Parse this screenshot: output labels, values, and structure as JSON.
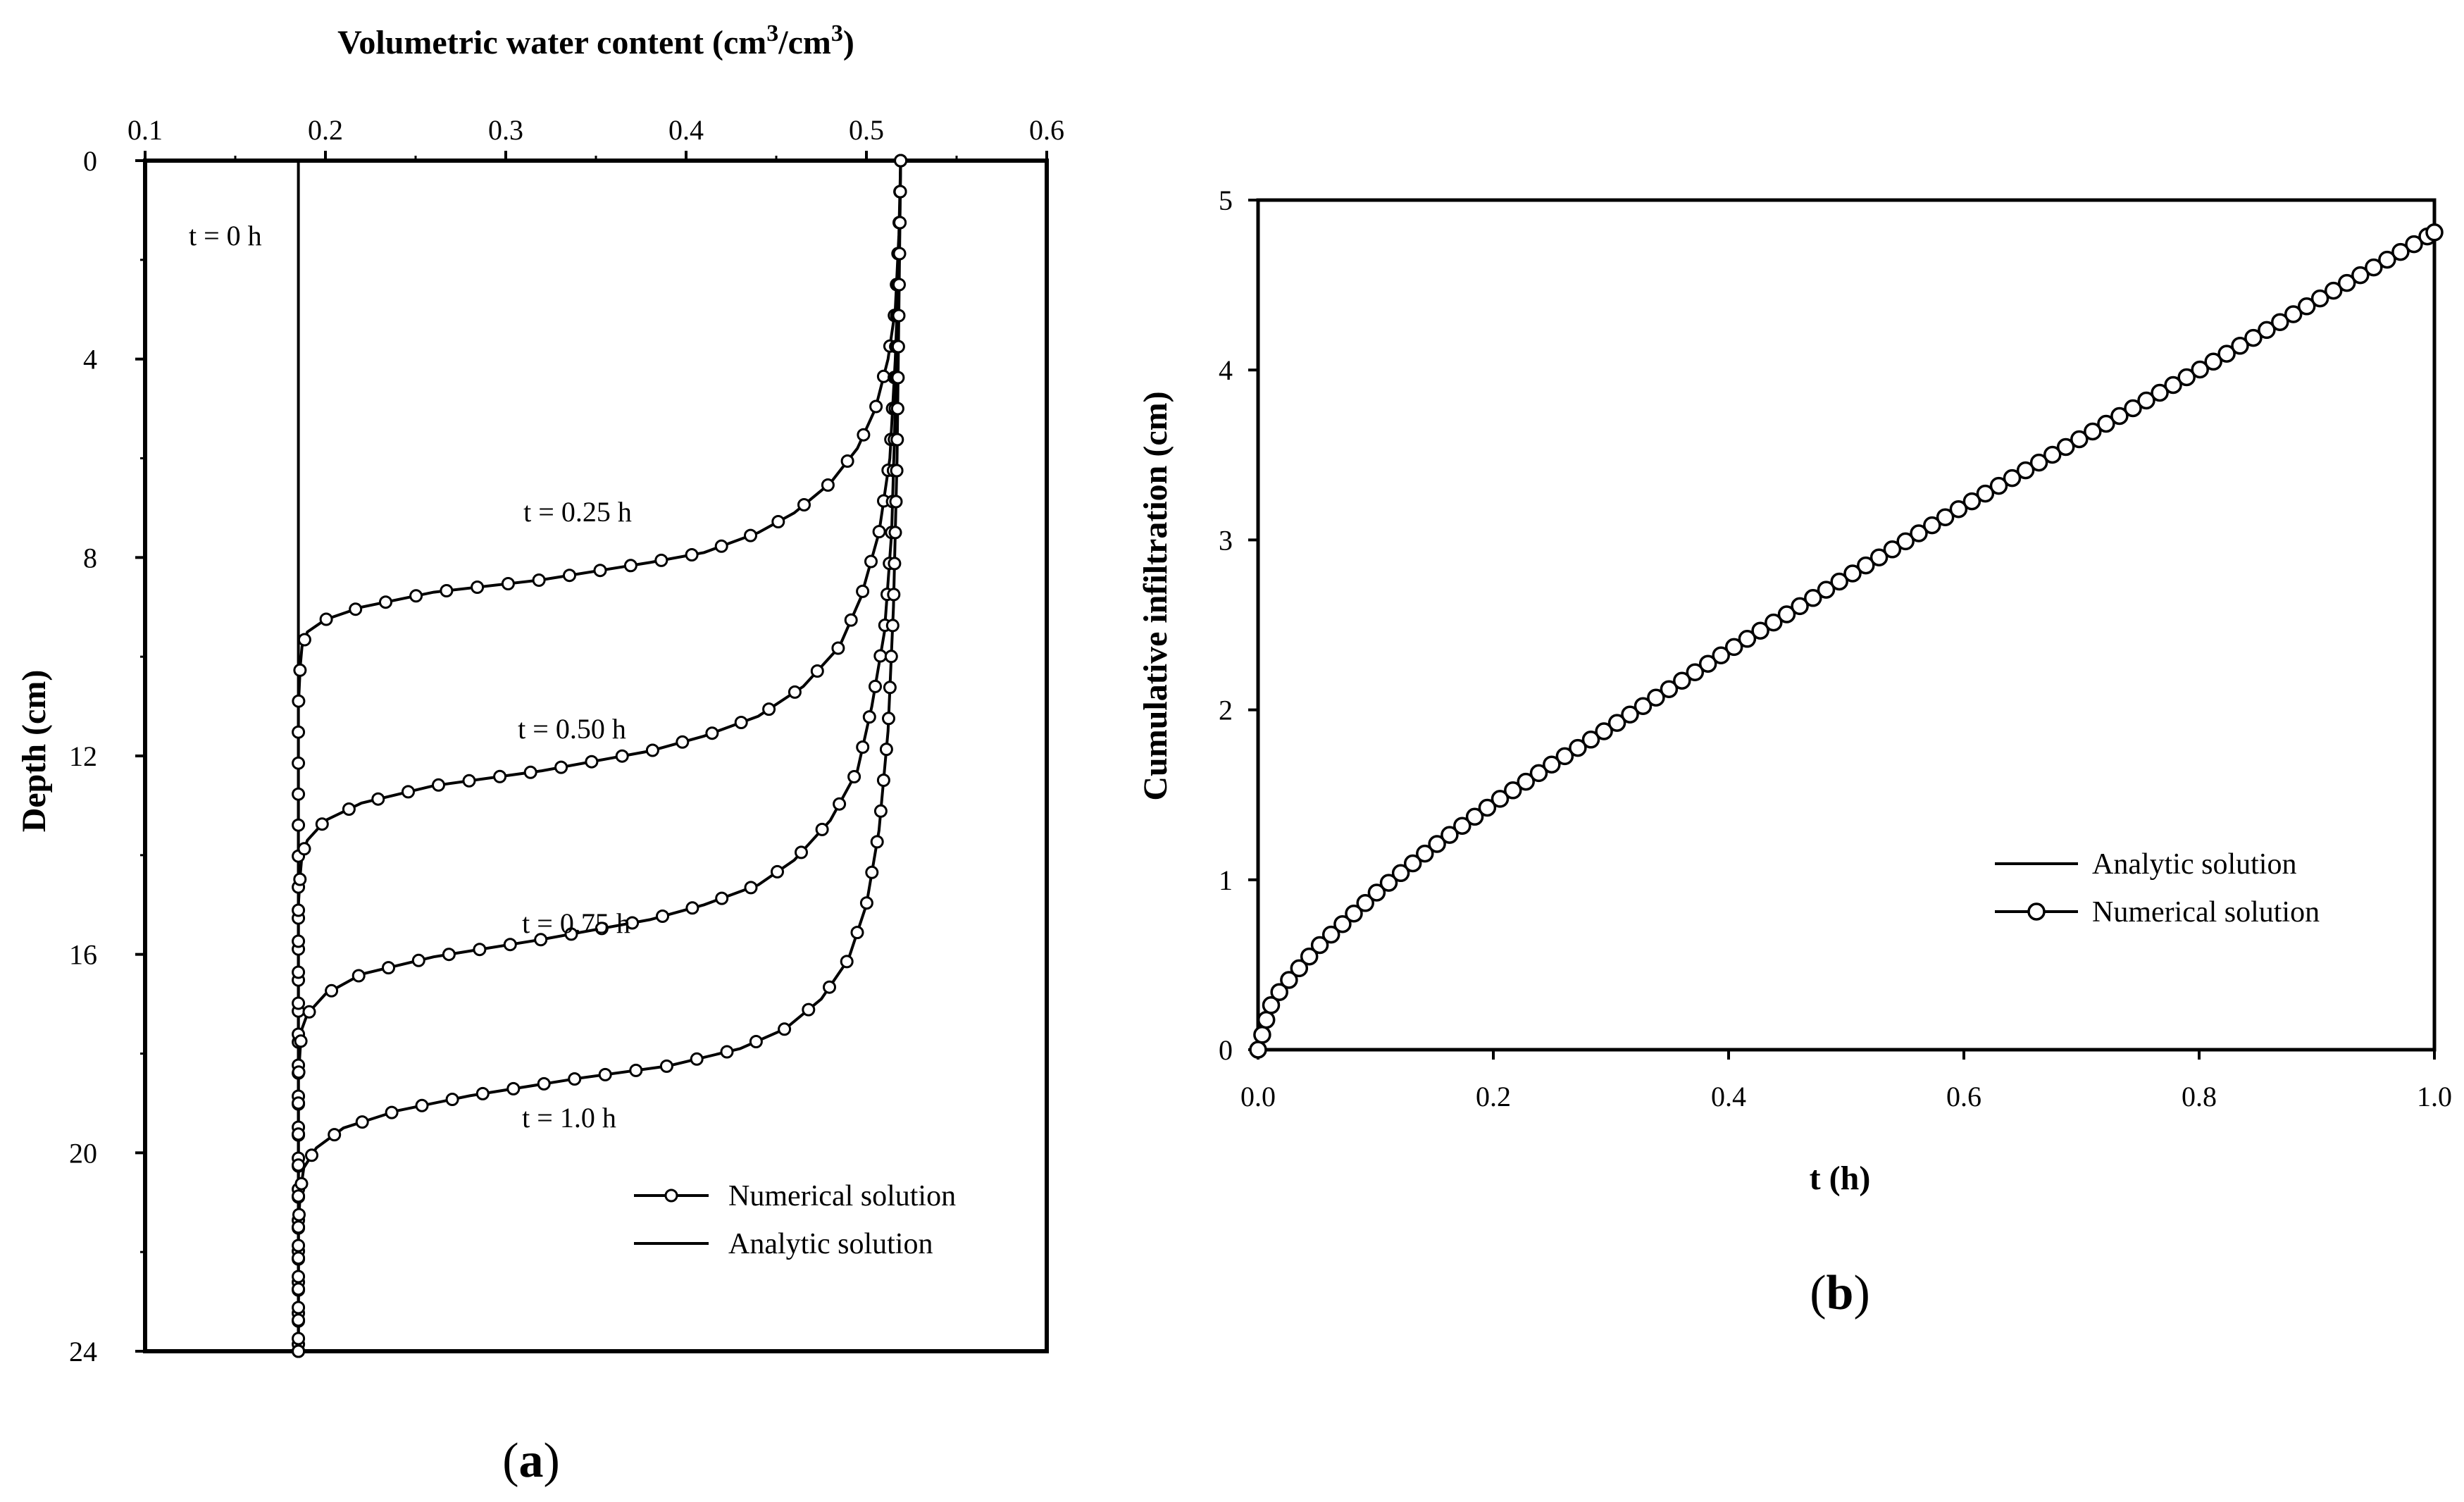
{
  "panel_a": {
    "panel_label_letter": "a",
    "title_prefix": "Volumetric water content (cm",
    "title_sup1": "3",
    "title_mid": "/cm",
    "title_sup2": "3",
    "title_suffix": ")",
    "legend_numerical": "Numerical solution",
    "legend_analytic": "Analytic solution"
  },
  "panel_b": {
    "panel_label_letter": "b",
    "legend_analytic": "Analytic solution",
    "legend_numerical": "Numerical solution"
  },
  "chart_data": [
    {
      "type": "line",
      "title": "Volumetric water content (cm3/cm3)",
      "xlabel": "Volumetric water content (cm3/cm3)",
      "ylabel": "Depth (cm)",
      "x_axis_position": "top",
      "y_inverted": true,
      "xlim": [
        0.1,
        0.6
      ],
      "ylim": [
        0,
        24
      ],
      "xticks": [
        0.1,
        0.2,
        0.3,
        0.4,
        0.5,
        0.6
      ],
      "xtick_labels": [
        "0.1",
        "0.2",
        "0.3",
        "0.4",
        "0.5",
        "0.6"
      ],
      "yticks": [
        0,
        4,
        8,
        12,
        16,
        20,
        24
      ],
      "ytick_labels": [
        "0",
        "4",
        "8",
        "12",
        "16",
        "20",
        "24"
      ],
      "legend": [
        "Numerical solution",
        "Analytic solution"
      ],
      "legend_position": "bottom-right",
      "params": {
        "theta_i": 0.185,
        "theta_s": 0.52
      },
      "series": [
        {
          "name": "t = 0 h",
          "label": "t = 0 h",
          "profile": [
            [
              0.185,
              0
            ],
            [
              0.185,
              24
            ]
          ]
        },
        {
          "name": "t = 0.25 h",
          "label": "t = 0.25 h",
          "profile": [
            [
              0.519,
              0.0
            ],
            [
              0.518,
              1.5
            ],
            [
              0.516,
              3.0
            ],
            [
              0.512,
              4.0
            ],
            [
              0.505,
              5.0
            ],
            [
              0.495,
              5.8
            ],
            [
              0.48,
              6.5
            ],
            [
              0.46,
              7.1
            ],
            [
              0.44,
              7.5
            ],
            [
              0.41,
              7.9
            ],
            [
              0.38,
              8.1
            ],
            [
              0.32,
              8.45
            ],
            [
              0.26,
              8.7
            ],
            [
              0.22,
              9.0
            ],
            [
              0.2,
              9.25
            ],
            [
              0.19,
              9.5
            ],
            [
              0.187,
              9.8
            ],
            [
              0.186,
              10.2
            ],
            [
              0.185,
              11.0
            ],
            [
              0.185,
              24.0
            ]
          ]
        },
        {
          "name": "t = 0.50 h",
          "label": "t = 0.50 h",
          "profile": [
            [
              0.519,
              0.0
            ],
            [
              0.518,
              2.0
            ],
            [
              0.516,
              4.0
            ],
            [
              0.513,
              6.0
            ],
            [
              0.507,
              7.5
            ],
            [
              0.497,
              8.8
            ],
            [
              0.485,
              9.8
            ],
            [
              0.465,
              10.6
            ],
            [
              0.44,
              11.2
            ],
            [
              0.41,
              11.6
            ],
            [
              0.38,
              11.9
            ],
            [
              0.32,
              12.3
            ],
            [
              0.26,
              12.6
            ],
            [
              0.22,
              12.95
            ],
            [
              0.2,
              13.3
            ],
            [
              0.19,
              13.7
            ],
            [
              0.187,
              14.0
            ],
            [
              0.186,
              14.4
            ],
            [
              0.185,
              15.0
            ],
            [
              0.185,
              24.0
            ]
          ]
        },
        {
          "name": "t = 0.75 h",
          "label": "t = 0.75 h",
          "profile": [
            [
              0.519,
              0.0
            ],
            [
              0.518,
              2.5
            ],
            [
              0.516,
              5.0
            ],
            [
              0.514,
              7.5
            ],
            [
              0.51,
              9.5
            ],
            [
              0.503,
              11.0
            ],
            [
              0.495,
              12.3
            ],
            [
              0.48,
              13.3
            ],
            [
              0.46,
              14.1
            ],
            [
              0.44,
              14.6
            ],
            [
              0.41,
              15.0
            ],
            [
              0.38,
              15.3
            ],
            [
              0.32,
              15.7
            ],
            [
              0.26,
              16.05
            ],
            [
              0.22,
              16.4
            ],
            [
              0.2,
              16.8
            ],
            [
              0.19,
              17.2
            ],
            [
              0.187,
              17.5
            ],
            [
              0.186,
              17.9
            ],
            [
              0.185,
              18.5
            ],
            [
              0.185,
              24.0
            ]
          ]
        },
        {
          "name": "t = 1.0 h",
          "label": "t = 1.0 h",
          "profile": [
            [
              0.519,
              0.0
            ],
            [
              0.518,
              3.0
            ],
            [
              0.517,
              6.0
            ],
            [
              0.515,
              9.0
            ],
            [
              0.512,
              11.5
            ],
            [
              0.507,
              13.5
            ],
            [
              0.5,
              15.0
            ],
            [
              0.49,
              16.1
            ],
            [
              0.475,
              16.9
            ],
            [
              0.455,
              17.5
            ],
            [
              0.43,
              17.9
            ],
            [
              0.39,
              18.25
            ],
            [
              0.34,
              18.5
            ],
            [
              0.28,
              18.85
            ],
            [
              0.24,
              19.15
            ],
            [
              0.21,
              19.5
            ],
            [
              0.195,
              19.9
            ],
            [
              0.188,
              20.3
            ],
            [
              0.186,
              20.8
            ],
            [
              0.185,
              21.5
            ],
            [
              0.185,
              24.0
            ]
          ]
        }
      ]
    },
    {
      "type": "line",
      "xlabel": "t (h)",
      "ylabel": "Cumulative infiltration (cm)",
      "xlim": [
        0.0,
        1.0
      ],
      "ylim": [
        0,
        5
      ],
      "xticks": [
        0.0,
        0.2,
        0.4,
        0.6,
        0.8,
        1.0
      ],
      "xtick_labels": [
        "0.0",
        "0.2",
        "0.4",
        "0.6",
        "0.8",
        "1.0"
      ],
      "yticks": [
        0,
        1,
        2,
        3,
        4,
        5
      ],
      "ytick_labels": [
        "0",
        "1",
        "2",
        "3",
        "4",
        "5"
      ],
      "legend": [
        "Analytic solution",
        "Numerical solution"
      ],
      "legend_position": "bottom-right",
      "series": [
        {
          "name": "Analytic solution",
          "x": [
            0.0,
            0.01,
            0.02,
            0.05,
            0.1,
            0.15,
            0.2,
            0.25,
            0.3,
            0.4,
            0.5,
            0.6,
            0.7,
            0.8,
            0.9,
            1.0
          ],
          "y": [
            0.0,
            0.25,
            0.36,
            0.6,
            0.92,
            1.2,
            1.45,
            1.68,
            1.9,
            2.35,
            2.78,
            3.2,
            3.6,
            4.0,
            4.41,
            4.81
          ]
        },
        {
          "name": "Numerical solution",
          "x": [
            0.0,
            0.01,
            0.02,
            0.05,
            0.1,
            0.15,
            0.2,
            0.25,
            0.3,
            0.4,
            0.5,
            0.6,
            0.7,
            0.8,
            0.9,
            1.0
          ],
          "y": [
            0.0,
            0.25,
            0.36,
            0.6,
            0.92,
            1.2,
            1.45,
            1.68,
            1.9,
            2.35,
            2.78,
            3.2,
            3.6,
            4.0,
            4.41,
            4.81
          ]
        }
      ]
    }
  ]
}
